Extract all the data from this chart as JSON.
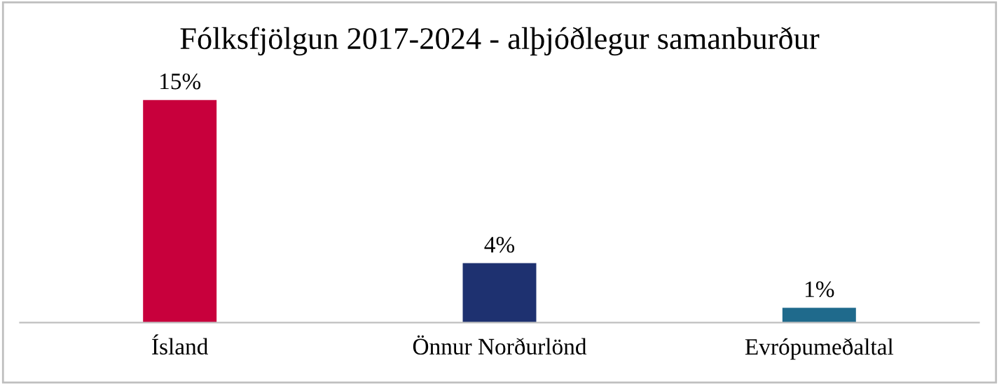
{
  "chart_data": {
    "type": "bar",
    "title": "Fólksfjölgun 2017-2024 - alþjóðlegur samanburður",
    "categories": [
      "Ísland",
      "Önnur Norðurlönd",
      "Evrópumeðaltal"
    ],
    "values": [
      15,
      4,
      1
    ],
    "colors": [
      "#c8003c",
      "#1e3170",
      "#1f6a8c"
    ],
    "value_labels": [
      "15%",
      "4%",
      "1%"
    ],
    "grid": false,
    "legend": false
  }
}
